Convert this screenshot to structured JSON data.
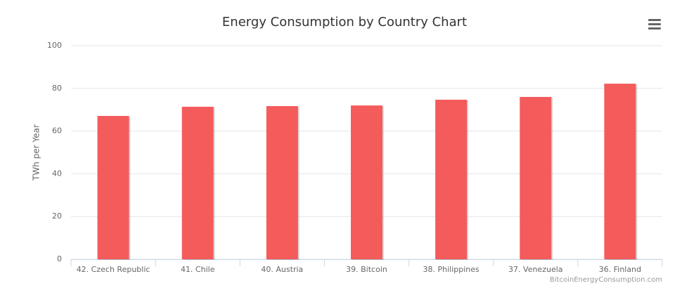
{
  "chart_data": {
    "type": "bar",
    "title": "Energy Consumption by Country Chart",
    "y_label": "TWh per Year",
    "categories": [
      "42. Czech Republic",
      "41. Chile",
      "40. Austria",
      "39. Bitcoin",
      "38. Philippines",
      "37. Venezuela",
      "36. Finland"
    ],
    "values": [
      67.1,
      71.4,
      71.7,
      72.0,
      74.7,
      76.0,
      82.2
    ],
    "color": "#f45b5b",
    "ylim": [
      0,
      100
    ],
    "yticks": [
      0,
      20,
      40,
      60,
      80,
      100
    ],
    "grid": true,
    "credits": "BitcoinEnergyConsumption.com"
  }
}
